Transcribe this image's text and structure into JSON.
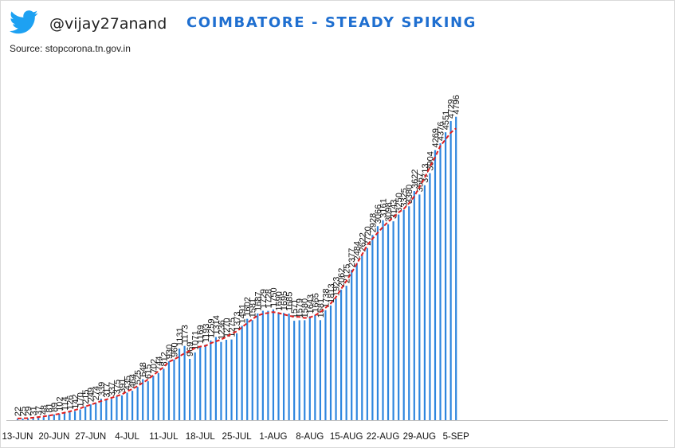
{
  "header": {
    "handle": "@vijay27anand",
    "title": "COIMBATORE - STEADY SPIKING",
    "source": "Source: stopcorona.tn.gov.in"
  },
  "icons": {
    "logo": "twitter-bird-icon"
  },
  "colors": {
    "bar": "#2e86de",
    "trend": "#e02020",
    "title": "#1f6fd0",
    "logo": "#1da1f2"
  },
  "chart_data": {
    "type": "bar",
    "title": "COIMBATORE - STEADY SPIKING",
    "xlabel": "",
    "ylabel": "",
    "ylim": [
      0,
      5000
    ],
    "grid": false,
    "legend": "none",
    "trendline": "dashed moving average",
    "x_tick_labels": [
      "13-JUN",
      "20-JUN",
      "27-JUN",
      "4-JUL",
      "11-JUL",
      "18-JUL",
      "25-JUL",
      "1-AUG",
      "8-AUG",
      "15-AUG",
      "22-AUG",
      "29-AUG",
      "5-SEP"
    ],
    "values": [
      22,
      25,
      29,
      31,
      37,
      48,
      81,
      89,
      102,
      114,
      126,
      142,
      170,
      215,
      249,
      274,
      339,
      317,
      337,
      375,
      391,
      435,
      464,
      525,
      648,
      615,
      702,
      744,
      812,
      930,
      960,
      1131,
      1173,
      969,
      1071,
      1169,
      1193,
      1259,
      1314,
      1236,
      1270,
      1275,
      1373,
      1491,
      1602,
      1581,
      1687,
      1729,
      1728,
      1750,
      1690,
      1695,
      1685,
      1571,
      1579,
      1580,
      1643,
      1665,
      1581,
      1738,
      1813,
      1923,
      2062,
      2125,
      2377,
      2484,
      2622,
      2720,
      2928,
      3066,
      3161,
      3098,
      3143,
      3250,
      3325,
      3380,
      3622,
      3567,
      3713,
      3904,
      4269,
      4376,
      4551,
      4729,
      4796
    ]
  }
}
